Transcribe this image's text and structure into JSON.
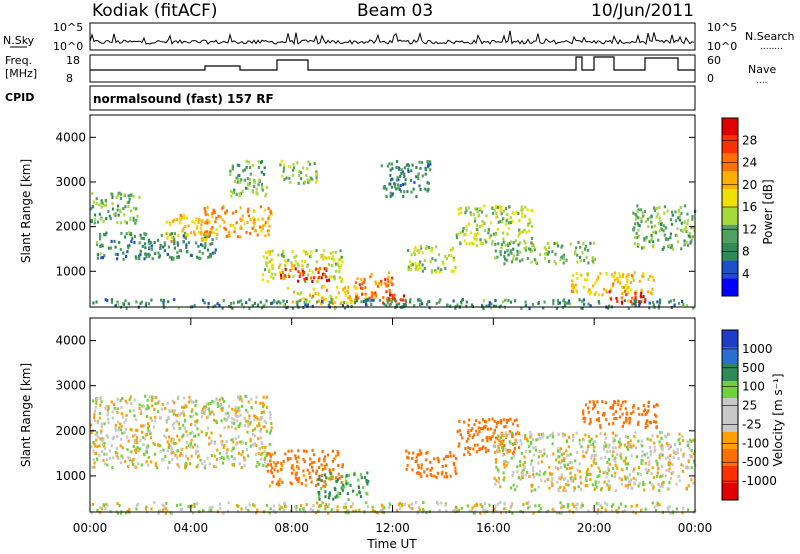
{
  "header": {
    "station": "Kodiak (fitACF)",
    "beam": "Beam 03",
    "date": "10/Jun/2011"
  },
  "summary_panel": {
    "nsky_label": "N.Sky",
    "nsky_ticks": [
      "10^5",
      "10^0"
    ],
    "nsearch_label": "N.Search",
    "nsearch_ticks": [
      "10^5",
      "10^0"
    ],
    "freq_label_line1": "Freq.",
    "freq_label_line2": "[MHz]",
    "freq_ticks": [
      "18",
      "8"
    ],
    "nave_label": "Nave",
    "nave_ticks": [
      "60",
      "0"
    ],
    "cpid_label": "CPID",
    "cpid_text": "normalsound (fast) 157 RF"
  },
  "colors": {
    "power_scale": [
      "#0000ff",
      "#1e50c8",
      "#2e8b57",
      "#50a060",
      "#a6d93c",
      "#f0e000",
      "#ffb000",
      "#ff7000",
      "#ff3000",
      "#e00000"
    ],
    "velocity_scale": [
      "#1e3cc8",
      "#2a6fd0",
      "#2e8b57",
      "#6fd13c",
      "#c8c8c8",
      "#c8c8c8",
      "#ffa000",
      "#ff7000",
      "#ff3000",
      "#e00000"
    ]
  },
  "chart_data": [
    {
      "type": "heatmap",
      "panel": "power",
      "ylabel": "Slant Range [km]",
      "colorbar_label": "Power [dB]",
      "colorbar_ticks": [
        "28",
        "24",
        "20",
        "16",
        "12",
        "8",
        "4"
      ],
      "colorbar_range": [
        0,
        30
      ],
      "yticks": [
        "1000",
        "2000",
        "3000",
        "4000"
      ],
      "ylim": [
        200,
        4500
      ],
      "xlim_hours": [
        0,
        24
      ],
      "echo_regions": [
        {
          "t0": 0.0,
          "t1": 2.0,
          "r0": 2100,
          "r1": 2800,
          "level": 11
        },
        {
          "t0": 0.2,
          "t1": 5.0,
          "r0": 1300,
          "r1": 1900,
          "level": 8
        },
        {
          "t0": 3.0,
          "t1": 4.8,
          "r0": 1700,
          "r1": 2300,
          "level": 19
        },
        {
          "t0": 4.5,
          "t1": 7.2,
          "r0": 1800,
          "r1": 2500,
          "level": 21
        },
        {
          "t0": 5.5,
          "t1": 7.0,
          "r0": 2700,
          "r1": 3500,
          "level": 11
        },
        {
          "t0": 6.8,
          "t1": 10.0,
          "r0": 800,
          "r1": 1500,
          "level": 15
        },
        {
          "t0": 7.8,
          "t1": 10.6,
          "r0": 300,
          "r1": 700,
          "level": 18
        },
        {
          "t0": 7.5,
          "t1": 9.5,
          "r0": 800,
          "r1": 1100,
          "level": 27
        },
        {
          "t0": 10.5,
          "t1": 12.0,
          "r0": 400,
          "r1": 1000,
          "level": 22
        },
        {
          "t0": 11.0,
          "t1": 12.5,
          "r0": 300,
          "r1": 550,
          "level": 26
        },
        {
          "t0": 12.5,
          "t1": 14.5,
          "r0": 1000,
          "r1": 1600,
          "level": 13
        },
        {
          "t0": 14.5,
          "t1": 17.5,
          "r0": 1600,
          "r1": 2500,
          "level": 14
        },
        {
          "t0": 16.0,
          "t1": 20.0,
          "r0": 1200,
          "r1": 1700,
          "level": 11
        },
        {
          "t0": 19.0,
          "t1": 22.5,
          "r0": 500,
          "r1": 1000,
          "level": 18
        },
        {
          "t0": 20.5,
          "t1": 22.0,
          "r0": 300,
          "r1": 600,
          "level": 28
        },
        {
          "t0": 21.5,
          "t1": 24.0,
          "r0": 1500,
          "r1": 2500,
          "level": 11
        },
        {
          "t0": 0.0,
          "t1": 24.0,
          "r0": 200,
          "r1": 400,
          "level": 8
        },
        {
          "t0": 7.5,
          "t1": 9.0,
          "r0": 3000,
          "r1": 3500,
          "level": 13
        },
        {
          "t0": 11.5,
          "t1": 13.5,
          "r0": 2700,
          "r1": 3500,
          "level": 7
        }
      ]
    },
    {
      "type": "heatmap",
      "panel": "velocity",
      "ylabel": "Slant Range [km]",
      "colorbar_label": "Velocity [m s⁻¹]",
      "colorbar_ticks": [
        "1000",
        "500",
        "100",
        "25",
        "-25",
        "-100",
        "-500",
        "-1000"
      ],
      "yticks": [
        "1000",
        "2000",
        "3000",
        "4000"
      ],
      "ylim": [
        200,
        4500
      ],
      "xlim_hours": [
        0,
        24
      ],
      "xticks": [
        "00:00",
        "04:00",
        "08:00",
        "12:00",
        "16:00",
        "20:00",
        "00:00"
      ],
      "xlabel": "Time UT",
      "echo_regions": [
        {
          "t0": 0.0,
          "t1": 7.2,
          "r0": 1200,
          "r1": 2800,
          "velocity": 0
        },
        {
          "t0": 7.0,
          "t1": 10.0,
          "r0": 800,
          "r1": 1600,
          "velocity": -150
        },
        {
          "t0": 9.0,
          "t1": 11.0,
          "r0": 500,
          "r1": 1100,
          "velocity": 120
        },
        {
          "t0": 12.5,
          "t1": 14.5,
          "r0": 1000,
          "r1": 1600,
          "velocity": -200
        },
        {
          "t0": 14.5,
          "t1": 17.0,
          "r0": 1500,
          "r1": 2300,
          "velocity": -400
        },
        {
          "t0": 16.0,
          "t1": 24.0,
          "r0": 700,
          "r1": 2000,
          "velocity": 0
        },
        {
          "t0": 19.5,
          "t1": 22.5,
          "r0": 2100,
          "r1": 2700,
          "velocity": -350
        },
        {
          "t0": 0.0,
          "t1": 24.0,
          "r0": 200,
          "r1": 450,
          "velocity": 0
        }
      ]
    }
  ]
}
